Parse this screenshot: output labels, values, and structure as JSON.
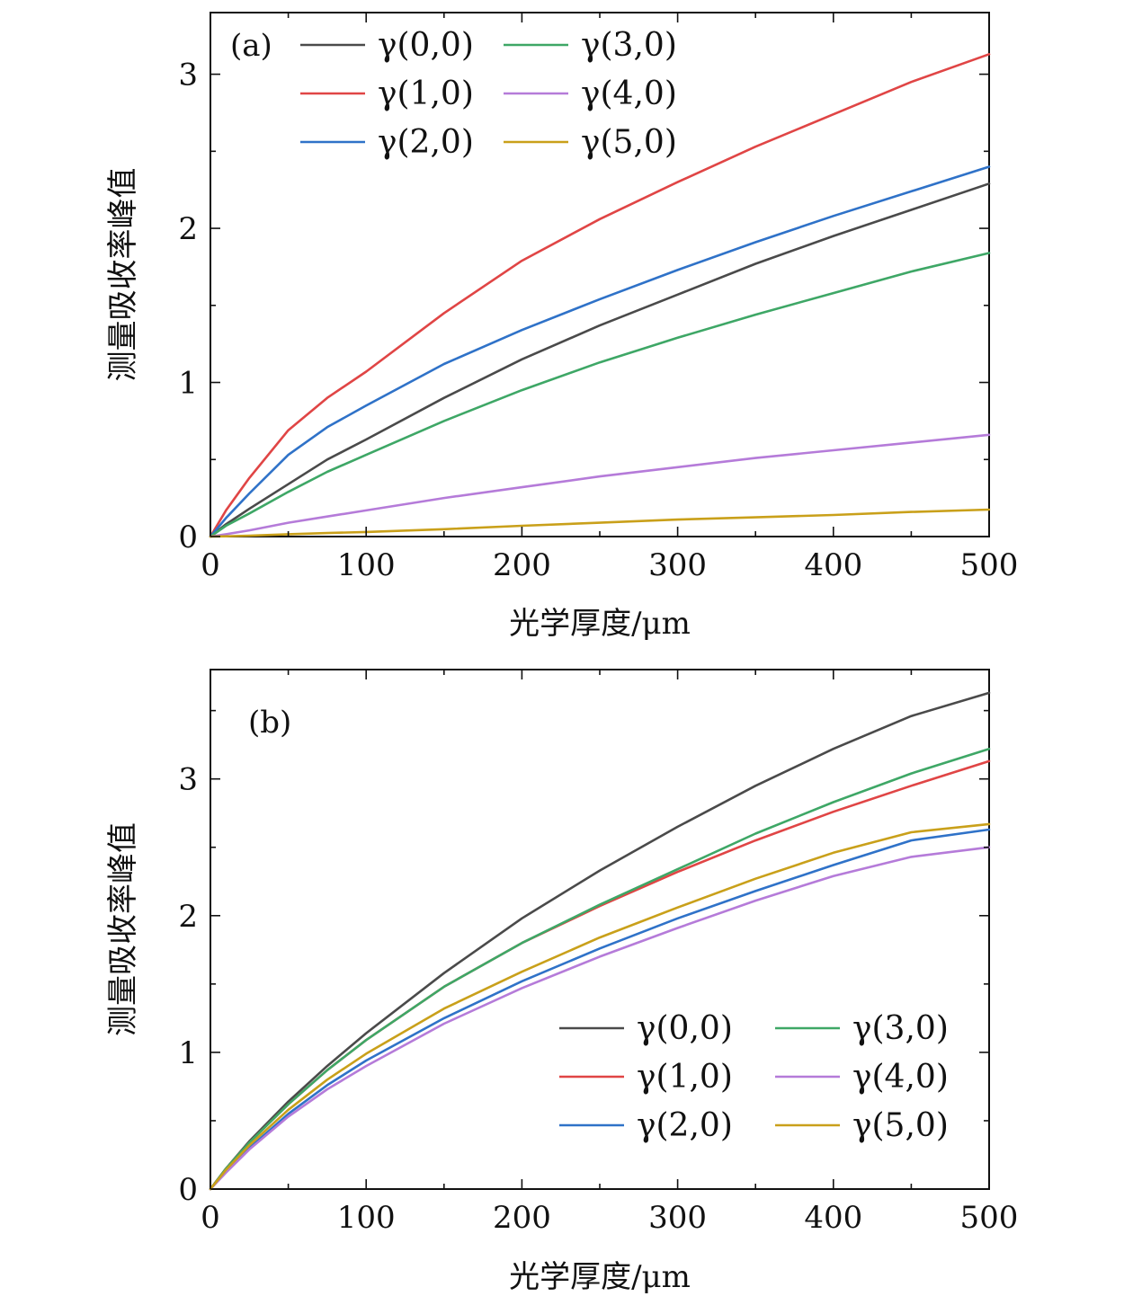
{
  "chart_data": [
    {
      "type": "line",
      "panel_label": "(a)",
      "xlabel": "光学厚度/μm",
      "ylabel": "测量吸收率峰值",
      "xlim": [
        0,
        500
      ],
      "ylim": [
        0,
        3.4
      ],
      "xticks": [
        0,
        100,
        200,
        300,
        400,
        500
      ],
      "xtick_labels": [
        "0",
        "100",
        "200",
        "300",
        "400",
        "500"
      ],
      "yticks": [
        0,
        1,
        2,
        3
      ],
      "ytick_labels": [
        "0",
        "1",
        "2",
        "3"
      ],
      "legend_position": "top-left",
      "x": [
        0,
        10,
        25,
        50,
        75,
        100,
        150,
        200,
        250,
        300,
        350,
        400,
        450,
        500
      ],
      "series": [
        {
          "name": "γ(0,0)",
          "color": "#4a4a4a",
          "values": [
            0,
            0.08,
            0.18,
            0.34,
            0.5,
            0.63,
            0.9,
            1.15,
            1.37,
            1.57,
            1.77,
            1.95,
            2.12,
            2.29
          ]
        },
        {
          "name": "γ(1,0)",
          "color": "#e04545",
          "values": [
            0,
            0.17,
            0.38,
            0.69,
            0.9,
            1.07,
            1.45,
            1.79,
            2.06,
            2.3,
            2.53,
            2.74,
            2.95,
            3.13
          ]
        },
        {
          "name": "γ(2,0)",
          "color": "#2f72c8",
          "values": [
            0,
            0.12,
            0.28,
            0.53,
            0.71,
            0.85,
            1.12,
            1.34,
            1.54,
            1.73,
            1.91,
            2.08,
            2.24,
            2.4
          ]
        },
        {
          "name": "γ(3,0)",
          "color": "#3ea766",
          "values": [
            0,
            0.07,
            0.15,
            0.29,
            0.42,
            0.53,
            0.75,
            0.95,
            1.13,
            1.29,
            1.44,
            1.58,
            1.72,
            1.84
          ]
        },
        {
          "name": "γ(4,0)",
          "color": "#b57bd9",
          "values": [
            0,
            0.015,
            0.04,
            0.09,
            0.13,
            0.17,
            0.25,
            0.32,
            0.39,
            0.45,
            0.51,
            0.56,
            0.61,
            0.66
          ]
        },
        {
          "name": "γ(5,0)",
          "color": "#c9a01a",
          "values": [
            0,
            0.002,
            0.006,
            0.015,
            0.023,
            0.03,
            0.048,
            0.07,
            0.09,
            0.11,
            0.125,
            0.14,
            0.16,
            0.175
          ]
        }
      ]
    },
    {
      "type": "line",
      "panel_label": "(b)",
      "xlabel": "光学厚度/μm",
      "ylabel": "测量吸收率峰值",
      "xlim": [
        0,
        500
      ],
      "ylim": [
        0,
        3.8
      ],
      "xticks": [
        0,
        100,
        200,
        300,
        400,
        500
      ],
      "xtick_labels": [
        "0",
        "100",
        "200",
        "300",
        "400",
        "500"
      ],
      "yticks": [
        0,
        1,
        2,
        3
      ],
      "ytick_labels": [
        "0",
        "1",
        "2",
        "3"
      ],
      "legend_position": "bottom-right",
      "x": [
        0,
        10,
        25,
        50,
        75,
        100,
        150,
        200,
        250,
        300,
        350,
        400,
        450,
        500
      ],
      "series": [
        {
          "name": "γ(0,0)",
          "color": "#4a4a4a",
          "values": [
            0,
            0.15,
            0.35,
            0.64,
            0.9,
            1.14,
            1.58,
            1.98,
            2.33,
            2.65,
            2.95,
            3.22,
            3.46,
            3.63
          ]
        },
        {
          "name": "γ(1,0)",
          "color": "#e04545",
          "values": [
            0,
            0.15,
            0.34,
            0.62,
            0.87,
            1.09,
            1.48,
            1.8,
            2.07,
            2.32,
            2.55,
            2.76,
            2.95,
            3.13
          ]
        },
        {
          "name": "γ(2,0)",
          "color": "#2f72c8",
          "values": [
            0,
            0.13,
            0.3,
            0.55,
            0.76,
            0.94,
            1.25,
            1.52,
            1.76,
            1.98,
            2.18,
            2.37,
            2.55,
            2.63
          ]
        },
        {
          "name": "γ(3,0)",
          "color": "#3ea766",
          "values": [
            0,
            0.15,
            0.34,
            0.62,
            0.87,
            1.09,
            1.48,
            1.8,
            2.08,
            2.34,
            2.6,
            2.83,
            3.04,
            3.22
          ]
        },
        {
          "name": "γ(4,0)",
          "color": "#b57bd9",
          "values": [
            0,
            0.12,
            0.29,
            0.53,
            0.73,
            0.9,
            1.21,
            1.47,
            1.7,
            1.91,
            2.11,
            2.29,
            2.43,
            2.5
          ]
        },
        {
          "name": "γ(5,0)",
          "color": "#c9a01a",
          "values": [
            0,
            0.14,
            0.32,
            0.58,
            0.8,
            0.99,
            1.32,
            1.59,
            1.84,
            2.06,
            2.27,
            2.46,
            2.61,
            2.67
          ]
        }
      ]
    }
  ]
}
